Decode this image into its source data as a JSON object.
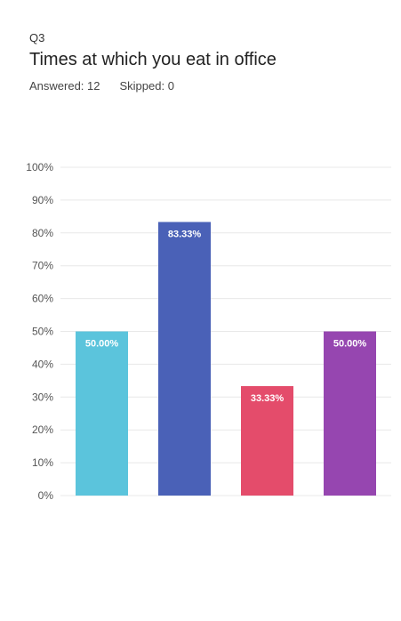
{
  "question": {
    "number": "Q3",
    "title": "Times at which you eat in office",
    "answered_label": "Answered: 12",
    "skipped_label": "Skipped: 0"
  },
  "colors": {
    "bar_1": "#5bc4dc",
    "bar_2": "#4a61b7",
    "bar_3": "#e44c6b",
    "bar_4": "#9646b0",
    "grid": "#e8e8e8",
    "tick_text": "#555555",
    "data_label": "#ffffff"
  },
  "chart_data": {
    "type": "bar",
    "categories": [
      "",
      "",
      "",
      ""
    ],
    "values": [
      50.0,
      83.33,
      33.33,
      50.0
    ],
    "data_labels": [
      "50.00%",
      "83.33%",
      "33.33%",
      "50.00%"
    ],
    "ylim": [
      0,
      100
    ],
    "y_ticks": [
      0,
      10,
      20,
      30,
      40,
      50,
      60,
      70,
      80,
      90,
      100
    ],
    "y_tick_labels": [
      "0%",
      "10%",
      "20%",
      "30%",
      "40%",
      "50%",
      "60%",
      "70%",
      "80%",
      "90%",
      "100%"
    ],
    "grid": true,
    "title": "",
    "xlabel": "",
    "ylabel": ""
  }
}
